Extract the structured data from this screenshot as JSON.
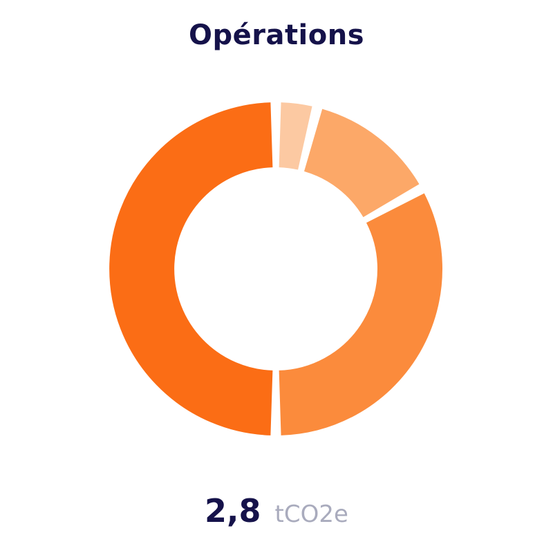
{
  "title": "Opérations",
  "total": {
    "value": "2,8",
    "unit": "tCO2e"
  },
  "chart_data": {
    "type": "pie",
    "variant": "donut",
    "title": "Opérations",
    "slices": [
      {
        "value": 4,
        "color": "#fcc9a2"
      },
      {
        "value": 13,
        "color": "#fca868"
      },
      {
        "value": 33,
        "color": "#fb8b3c"
      },
      {
        "value": 50,
        "color": "#fb6d15"
      }
    ],
    "unit": "%"
  }
}
